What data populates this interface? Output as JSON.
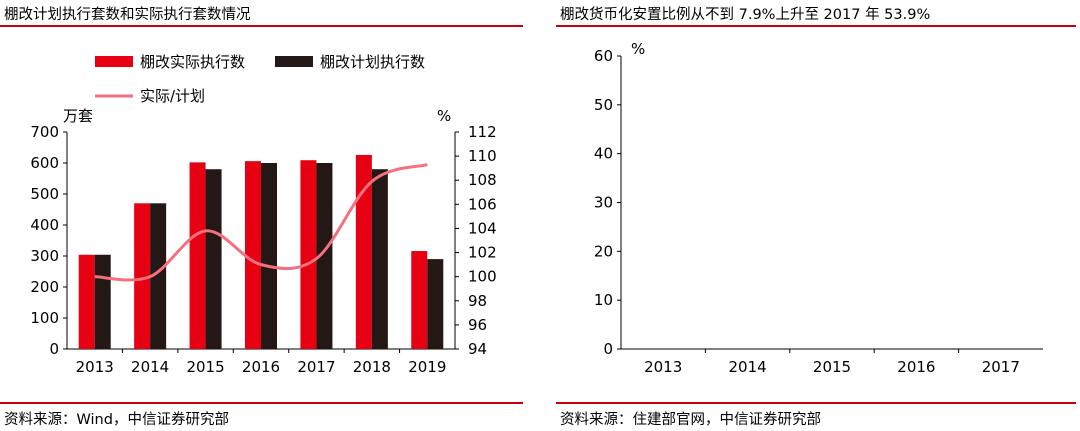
{
  "left": {
    "title": "棚改计划执行套数和实际执行套数情况",
    "source": "资料来源：Wind，中信证券研究部",
    "colors": {
      "actual": "#e60012",
      "plan": "#231815",
      "ratio": "#f4707e"
    },
    "chart_data": {
      "type": "bar",
      "categories": [
        "2013",
        "2014",
        "2015",
        "2016",
        "2017",
        "2018",
        "2019"
      ],
      "series": [
        {
          "name": "棚改实际执行数",
          "type": "bar",
          "axis": "left",
          "values": [
            304,
            470,
            602,
            606,
            609,
            626,
            316
          ]
        },
        {
          "name": "棚改计划执行数",
          "type": "bar",
          "axis": "left",
          "values": [
            304,
            470,
            580,
            600,
            600,
            580,
            290
          ]
        },
        {
          "name": "实际/计划",
          "type": "line",
          "axis": "right",
          "values": [
            100.0,
            100.0,
            103.8,
            101.0,
            101.5,
            107.9,
            109.3
          ]
        }
      ],
      "ylabel_left": "万套",
      "ylabel_right": "%",
      "ylim_left": [
        0,
        700
      ],
      "yticks_left": [
        "0",
        "100",
        "200",
        "300",
        "400",
        "500",
        "600",
        "700"
      ],
      "ylim_right": [
        94,
        112
      ],
      "yticks_right": [
        "94",
        "96",
        "98",
        "100",
        "102",
        "104",
        "106",
        "108",
        "110",
        "112"
      ],
      "legend_position": "top-left",
      "grid": false
    }
  },
  "right": {
    "title": "棚改货币化安置比例从不到 7.9%上升至 2017 年 53.9%",
    "source": "资料来源：住建部官网，中信证券研究部",
    "colors": {
      "bar": "#e60012"
    },
    "chart_data": {
      "type": "bar",
      "categories": [
        "2013",
        "2014",
        "2015",
        "2016",
        "2017"
      ],
      "ylabel": "%",
      "ylim": [
        0,
        60
      ],
      "yticks": [
        "0",
        "10",
        "20",
        "30",
        "40",
        "50",
        "60"
      ],
      "grid": false
    }
  }
}
